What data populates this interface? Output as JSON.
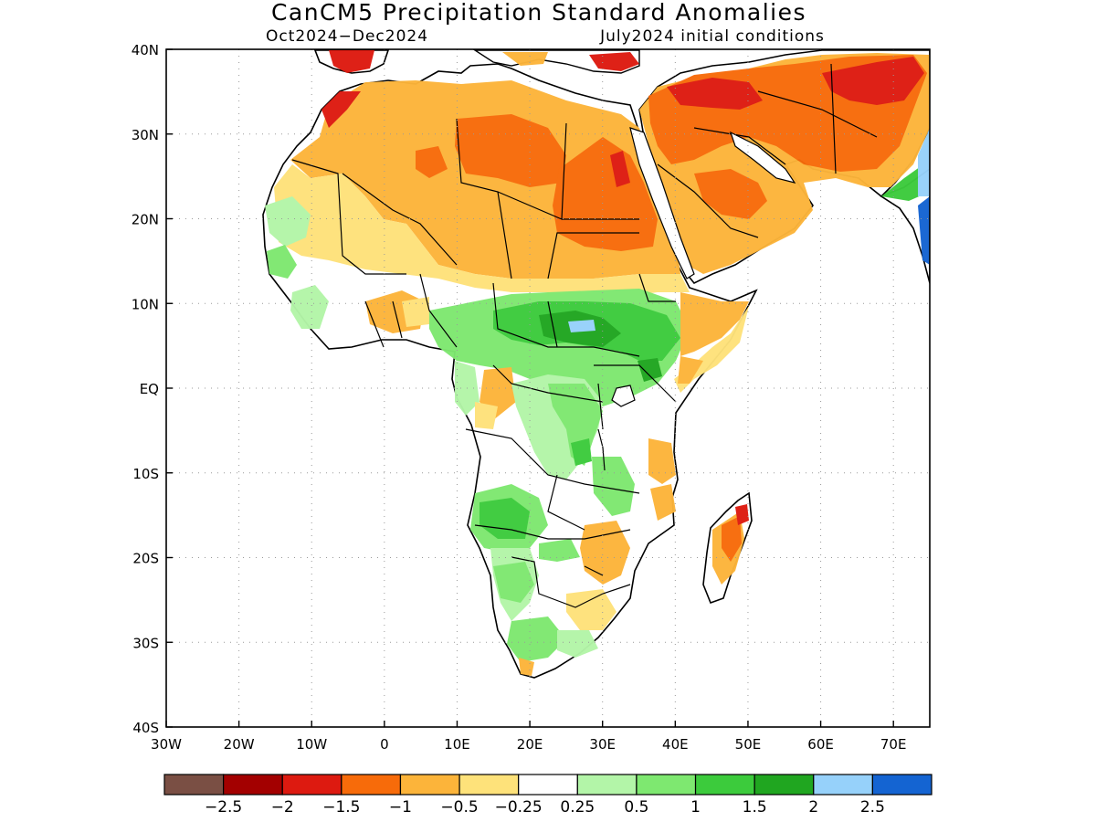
{
  "title": "CanCM5 Precipitation Standard Anomalies",
  "subtitle_left": "Oct2024−Dec2024",
  "subtitle_right": "July2024 initial conditions",
  "lon_ticks": [
    "30W",
    "20W",
    "10W",
    "0",
    "10E",
    "20E",
    "30E",
    "40E",
    "50E",
    "60E",
    "70E"
  ],
  "lat_ticks": [
    "40N",
    "30N",
    "20N",
    "10N",
    "EQ",
    "10S",
    "20S",
    "30S",
    "40S"
  ],
  "colorbar": {
    "colors": [
      "#7a4f44",
      "#a30000",
      "#dd1a10",
      "#f76b0a",
      "#fcb43a",
      "#fee27a",
      "#ffffff",
      "#b3f5a8",
      "#7ee870",
      "#3ccb3c",
      "#20a620",
      "#96d1fa",
      "#1464d2"
    ],
    "labels": [
      "−2.5",
      "−2",
      "−1.5",
      "−1",
      "−0.5",
      "−0.25",
      "0.25",
      "0.5",
      "1",
      "1.5",
      "2",
      "2.5"
    ]
  },
  "extent": {
    "lon_min": -30,
    "lon_max": 75,
    "lat_min": -40,
    "lat_max": 40
  },
  "colors": {
    "dry_deep": "#a30000",
    "dry_strong": "#dd1a10",
    "dry_moderate": "#f76b0a",
    "dry_mild": "#fcb43a",
    "dry_weak": "#fee27a",
    "wet_weak": "#b3f5a8",
    "wet_mild": "#7ee870",
    "wet_moderate": "#3ccb3c",
    "wet_strong": "#20a620",
    "wet_very": "#96d1fa",
    "wet_extreme": "#1464d2"
  }
}
